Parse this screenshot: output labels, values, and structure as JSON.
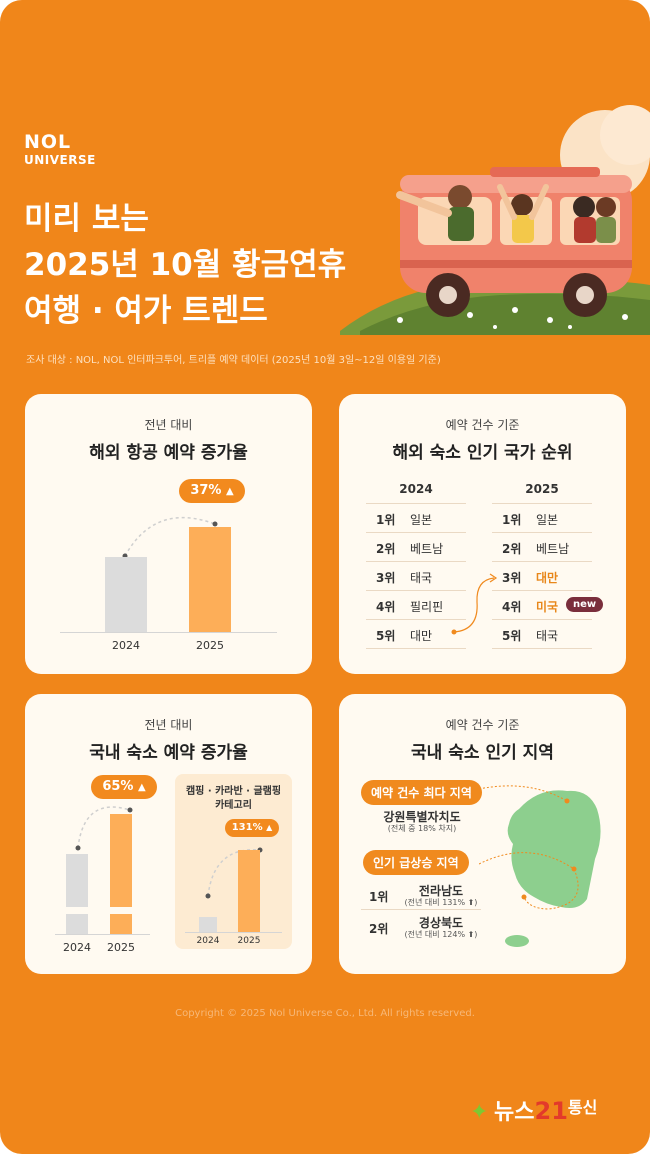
{
  "brand": {
    "line1": "NOL",
    "line2": "UNIVERSE"
  },
  "title": {
    "line1": "미리 보는",
    "line2": "2025년 10월 황금연휴",
    "line3": "여행 · 여가 트렌드"
  },
  "survey_note": "조사 대상 : NOL, NOL 인터파크투어, 트리플 예약 데이터 (2025년 10월 3일~12일 이용일 기준)",
  "card_air": {
    "subtitle": "전년 대비",
    "heading": "해외 항공 예약 증가율",
    "growth": "37%",
    "year_a": "2024",
    "year_b": "2025"
  },
  "card_country": {
    "subtitle": "예약 건수 기준",
    "heading": "해외 숙소 인기 국가 순위",
    "year_a": "2024",
    "year_b": "2025",
    "ranks_a": [
      {
        "rank": "1위",
        "country": "일본"
      },
      {
        "rank": "2위",
        "country": "베트남"
      },
      {
        "rank": "3위",
        "country": "태국"
      },
      {
        "rank": "4위",
        "country": "필리핀"
      },
      {
        "rank": "5위",
        "country": "대만"
      }
    ],
    "ranks_b": [
      {
        "rank": "1위",
        "country": "일본"
      },
      {
        "rank": "2위",
        "country": "베트남"
      },
      {
        "rank": "3위",
        "country": "대만"
      },
      {
        "rank": "4위",
        "country": "미국"
      },
      {
        "rank": "5위",
        "country": "태국"
      }
    ],
    "new_badge": "new"
  },
  "card_domestic": {
    "subtitle": "전년 대비",
    "heading": "국내 숙소 예약 증가율",
    "growth": "65%",
    "year_a": "2024",
    "year_b": "2025",
    "category_label_1": "캠핑 · 카라반 · 글램핑",
    "category_label_2": "카테고리",
    "category_growth": "131%",
    "cat_year_a": "2024",
    "cat_year_b": "2025"
  },
  "card_region": {
    "subtitle": "예약 건수 기준",
    "heading": "국내 숙소 인기 지역",
    "tag_most": "예약 건수 최다 지역",
    "most_region": "강원특별자치도",
    "most_note": "(전체 중 18% 차지)",
    "tag_rising": "인기 급상승 지역",
    "rising": [
      {
        "rank": "1위",
        "region": "전라남도",
        "note": "(전년 대비 131% ⬆)"
      },
      {
        "rank": "2위",
        "region": "경상북도",
        "note": "(전년 대비 124% ⬆)"
      }
    ]
  },
  "copyright": "Copyright © 2025 Nol Universe Co., Ltd. All rights reserved.",
  "watermark": {
    "part1": "뉴스",
    "part2": "21",
    "part3": "통신"
  },
  "colors": {
    "background": "#f0861a",
    "card": "#fffaf1",
    "accent": "#f28a1e",
    "bar_orange": "#fdae58",
    "bar_gray": "#dcdcdc",
    "badge": "#7a2e3c"
  }
}
